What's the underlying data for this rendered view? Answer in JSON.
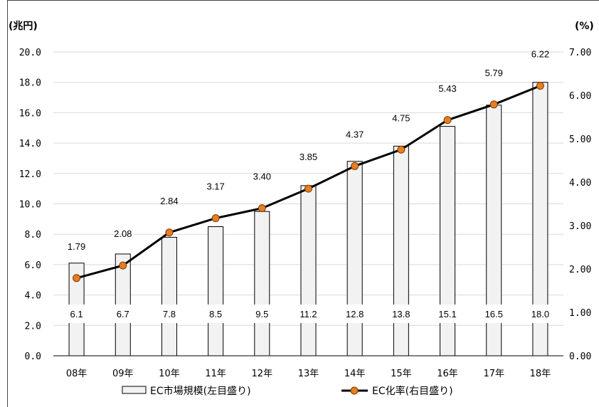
{
  "chart_data": {
    "type": "bar+line",
    "left_axis": {
      "unit_label": "(兆円)",
      "ylim": [
        0,
        20
      ],
      "ticks": [
        "0.0",
        "2.0",
        "4.0",
        "6.0",
        "8.0",
        "10.0",
        "12.0",
        "14.0",
        "16.0",
        "18.0",
        "20.0"
      ]
    },
    "right_axis": {
      "unit_label": "(%)",
      "ylim": [
        0,
        7
      ],
      "ticks": [
        "0.00",
        "1.00",
        "2.00",
        "3.00",
        "4.00",
        "5.00",
        "6.00",
        "7.00"
      ]
    },
    "categories": [
      "08年",
      "09年",
      "10年",
      "11年",
      "12年",
      "13年",
      "14年",
      "15年",
      "16年",
      "17年",
      "18年"
    ],
    "series": [
      {
        "name": "EC市場規模(左目盛り)",
        "type": "bar",
        "axis": "left",
        "values": [
          6.1,
          6.7,
          7.8,
          8.5,
          9.5,
          11.2,
          12.8,
          13.8,
          15.1,
          16.5,
          18.0
        ],
        "labels": [
          "6.1",
          "6.7",
          "7.8",
          "8.5",
          "9.5",
          "11.2",
          "12.8",
          "13.8",
          "15.1",
          "16.5",
          "18.0"
        ],
        "color": "#f2f2f2"
      },
      {
        "name": "EC化率(右目盛り)",
        "type": "line",
        "axis": "right",
        "values": [
          1.79,
          2.08,
          2.84,
          3.17,
          3.4,
          3.85,
          4.37,
          4.75,
          5.43,
          5.79,
          6.22
        ],
        "labels": [
          "1.79",
          "2.08",
          "2.84",
          "3.17",
          "3.40",
          "3.85",
          "4.37",
          "4.75",
          "5.43",
          "5.79",
          "6.22"
        ],
        "color": "#000000",
        "marker_color": "#e67e22"
      }
    ],
    "legend": {
      "position": "bottom",
      "items": [
        "EC市場規模(左目盛り)",
        "EC化率(右目盛り)"
      ]
    },
    "grid": true
  }
}
